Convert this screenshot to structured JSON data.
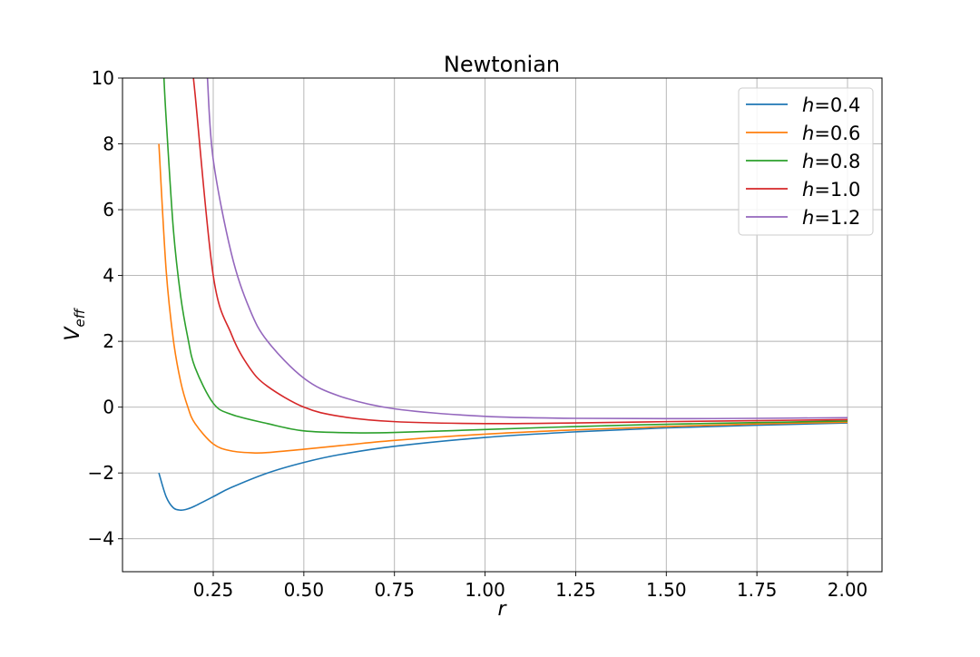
{
  "chart_data": {
    "type": "line",
    "title": "Newtonian",
    "xlabel": "r",
    "ylabel": "V",
    "ylabel_subscript": "eff",
    "xlim": [
      0.1,
      2.0
    ],
    "ylim": [
      -5,
      10
    ],
    "xticks": [
      0.25,
      0.5,
      0.75,
      1.0,
      1.25,
      1.5,
      1.75,
      2.0
    ],
    "xtick_labels": [
      "0.25",
      "0.50",
      "0.75",
      "1.00",
      "1.25",
      "1.50",
      "1.75",
      "2.00"
    ],
    "yticks": [
      -4,
      -2,
      0,
      2,
      4,
      6,
      8,
      10
    ],
    "ytick_labels": [
      "−4",
      "−2",
      "0",
      "2",
      "4",
      "6",
      "8",
      "10"
    ],
    "grid": true,
    "legend_position": "top-right",
    "series": [
      {
        "name": "h=0.4",
        "legend_var": "h",
        "legend_value": "=0.4",
        "h": 0.4,
        "color": "#1f77b4",
        "x": [
          0.1,
          0.12,
          0.14,
          0.16,
          0.18,
          0.2,
          0.25,
          0.3,
          0.4,
          0.5,
          0.6,
          0.75,
          1.0,
          1.25,
          1.5,
          1.75,
          2.0
        ],
        "y": [
          -2.0,
          -2.72,
          -3.06,
          -3.13,
          -3.09,
          -3.0,
          -2.72,
          -2.44,
          -2.0,
          -1.68,
          -1.44,
          -1.19,
          -0.92,
          -0.75,
          -0.63,
          -0.55,
          -0.48
        ]
      },
      {
        "name": "h=0.6",
        "legend_var": "h",
        "legend_value": "=0.6",
        "h": 0.6,
        "color": "#ff7f0e",
        "x": [
          0.1,
          0.12,
          0.14,
          0.16,
          0.18,
          0.2,
          0.25,
          0.3,
          0.36,
          0.4,
          0.5,
          0.6,
          0.75,
          1.0,
          1.25,
          1.5,
          1.75,
          2.0
        ],
        "y": [
          8.0,
          4.17,
          2.04,
          0.78,
          -0.0,
          -0.5,
          -1.12,
          -1.33,
          -1.39,
          -1.38,
          -1.28,
          -1.17,
          -1.01,
          -0.82,
          -0.69,
          -0.59,
          -0.51,
          -0.46
        ]
      },
      {
        "name": "h=0.8",
        "legend_var": "h",
        "legend_value": "=0.8",
        "h": 0.8,
        "color": "#2ca02c",
        "x": [
          0.114,
          0.12,
          0.14,
          0.16,
          0.18,
          0.2,
          0.25,
          0.3,
          0.4,
          0.5,
          0.64,
          0.75,
          1.0,
          1.25,
          1.5,
          1.75,
          2.0
        ],
        "y": [
          10.0,
          8.78,
          5.4,
          3.38,
          2.1,
          1.2,
          0.12,
          -0.22,
          -0.5,
          -0.72,
          -0.78,
          -0.77,
          -0.68,
          -0.59,
          -0.52,
          -0.47,
          -0.42
        ]
      },
      {
        "name": "h=1.0",
        "legend_var": "h",
        "legend_value": "=1.0",
        "h": 1.0,
        "color": "#d62728",
        "x": [
          0.195,
          0.2,
          0.25,
          0.3,
          0.35,
          0.4,
          0.5,
          0.6,
          0.75,
          1.0,
          1.25,
          1.5,
          1.75,
          2.0
        ],
        "y": [
          10.0,
          9.5,
          4.0,
          2.22,
          1.2,
          0.63,
          0.0,
          -0.28,
          -0.44,
          -0.5,
          -0.48,
          -0.44,
          -0.41,
          -0.38
        ]
      },
      {
        "name": "h=1.2",
        "legend_var": "h",
        "legend_value": "=1.2",
        "h": 1.2,
        "color": "#9467bd",
        "x": [
          0.234,
          0.25,
          0.3,
          0.35,
          0.4,
          0.5,
          0.6,
          0.75,
          1.0,
          1.25,
          1.5,
          1.75,
          2.0
        ],
        "y": [
          10.0,
          7.52,
          4.67,
          2.99,
          2.0,
          0.88,
          0.33,
          -0.05,
          -0.28,
          -0.34,
          -0.35,
          -0.34,
          -0.32
        ]
      }
    ]
  }
}
